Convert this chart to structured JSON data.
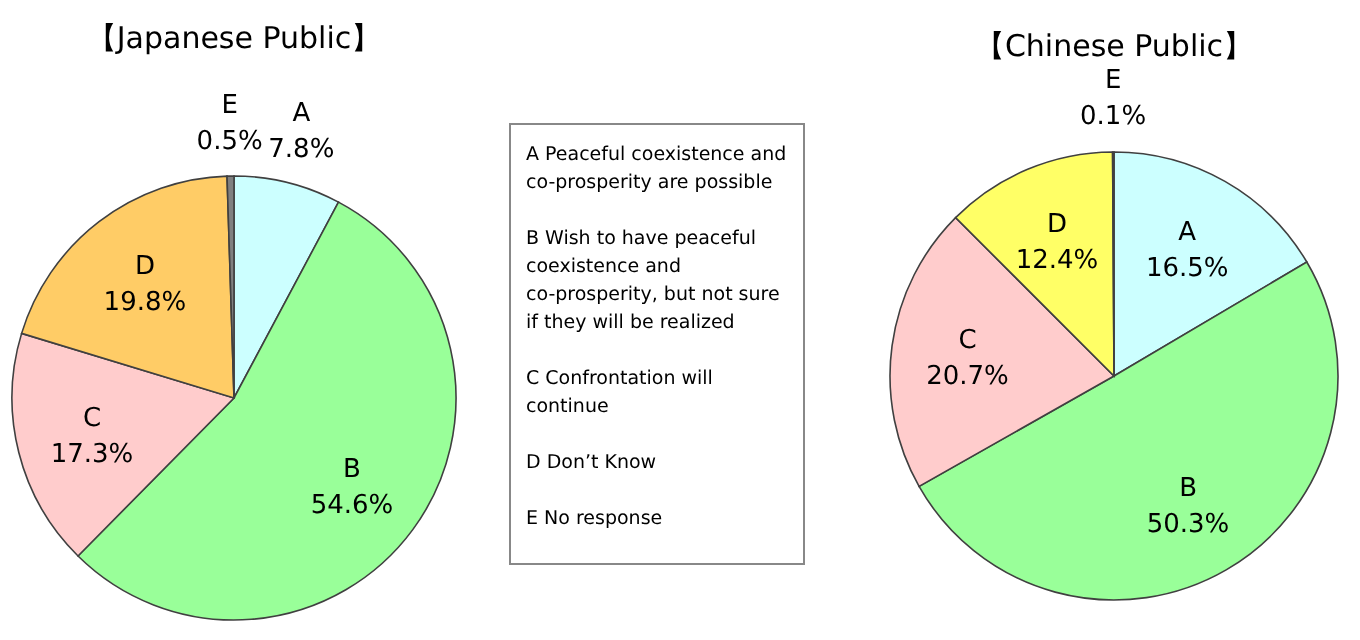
{
  "chart_data": [
    {
      "type": "pie",
      "title": "【Japanese Public】",
      "categories": [
        "A",
        "B",
        "C",
        "D",
        "E"
      ],
      "values": [
        7.8,
        54.6,
        17.3,
        19.8,
        0.5
      ],
      "value_labels": [
        "7.8%",
        "54.6%",
        "17.3%",
        "19.8%",
        "0.5%"
      ],
      "colors": [
        "#ccffff",
        "#99ff99",
        "#ffcccc",
        "#ffcc66",
        "#808080"
      ]
    },
    {
      "type": "other",
      "annotations": [
        "A  Peaceful coexistence and co-prosperity  are possible",
        "B  Wish to have peaceful coexistence and co-prosperity,  but not sure if they will be realized",
        "C  Confrontation  will continue",
        "D  Don’t Know",
        "E  No response"
      ]
    },
    {
      "type": "pie",
      "title": "【Chinese Public】",
      "categories": [
        "A",
        "B",
        "C",
        "D",
        "E"
      ],
      "values": [
        16.5,
        50.3,
        20.7,
        12.4,
        0.1
      ],
      "value_labels": [
        "16.5%",
        "50.3%",
        "20.7%",
        "12.4%",
        "0.1%"
      ],
      "colors": [
        "#ccffff",
        "#99ff99",
        "#ffcccc",
        "#ffff66",
        "#808080"
      ]
    }
  ]
}
